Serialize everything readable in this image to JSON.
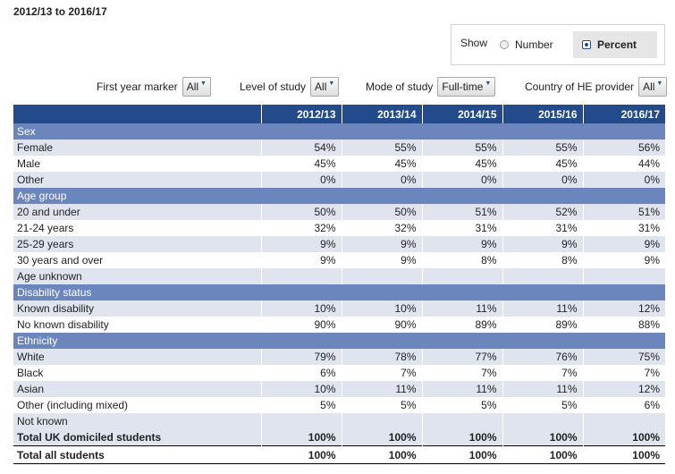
{
  "title": "2012/13 to 2016/17",
  "show": {
    "label": "Show",
    "number_label": "Number",
    "percent_label": "Percent"
  },
  "filters": [
    {
      "label": "First year marker",
      "value": "All"
    },
    {
      "label": "Level of study",
      "value": "All"
    },
    {
      "label": "Mode of study",
      "value": "Full-time"
    },
    {
      "label": "Country of HE provider",
      "value": "All"
    }
  ],
  "columns": [
    "2012/13",
    "2013/14",
    "2014/15",
    "2015/16",
    "2016/17"
  ],
  "rows": [
    {
      "type": "section",
      "label": "Sex"
    },
    {
      "type": "data",
      "label": "Female",
      "values": [
        "54%",
        "55%",
        "55%",
        "55%",
        "56%"
      ]
    },
    {
      "type": "data",
      "label": "Male",
      "values": [
        "45%",
        "45%",
        "45%",
        "45%",
        "44%"
      ]
    },
    {
      "type": "data",
      "label": "Other",
      "values": [
        "0%",
        "0%",
        "0%",
        "0%",
        "0%"
      ]
    },
    {
      "type": "section",
      "label": "Age group"
    },
    {
      "type": "data",
      "label": "20 and under",
      "values": [
        "50%",
        "50%",
        "51%",
        "52%",
        "51%"
      ]
    },
    {
      "type": "data",
      "label": "21-24 years",
      "values": [
        "32%",
        "32%",
        "31%",
        "31%",
        "31%"
      ]
    },
    {
      "type": "data",
      "label": "25-29 years",
      "values": [
        "9%",
        "9%",
        "9%",
        "9%",
        "9%"
      ]
    },
    {
      "type": "data",
      "label": "30 years and over",
      "values": [
        "9%",
        "9%",
        "8%",
        "8%",
        "9%"
      ]
    },
    {
      "type": "data",
      "label": "Age unknown",
      "values": [
        "",
        "",
        "",
        "",
        ""
      ]
    },
    {
      "type": "section",
      "label": "Disability status"
    },
    {
      "type": "data",
      "label": "Known disability",
      "values": [
        "10%",
        "10%",
        "11%",
        "11%",
        "12%"
      ]
    },
    {
      "type": "data",
      "label": "No known disability",
      "values": [
        "90%",
        "90%",
        "89%",
        "89%",
        "88%"
      ]
    },
    {
      "type": "section",
      "label": "Ethnicity"
    },
    {
      "type": "data",
      "label": "White",
      "values": [
        "79%",
        "78%",
        "77%",
        "76%",
        "75%"
      ]
    },
    {
      "type": "data",
      "label": "Black",
      "values": [
        "6%",
        "7%",
        "7%",
        "7%",
        "7%"
      ]
    },
    {
      "type": "data",
      "label": "Asian",
      "values": [
        "10%",
        "11%",
        "11%",
        "11%",
        "12%"
      ]
    },
    {
      "type": "data",
      "label": "Other (including mixed)",
      "values": [
        "5%",
        "5%",
        "5%",
        "5%",
        "6%"
      ]
    },
    {
      "type": "data",
      "label": "Not known",
      "values": [
        "",
        "",
        "",
        "",
        ""
      ]
    },
    {
      "type": "total",
      "label": "Total UK domiciled students",
      "values": [
        "100%",
        "100%",
        "100%",
        "100%",
        "100%"
      ]
    },
    {
      "type": "grand",
      "label": "Total all students",
      "values": [
        "100%",
        "100%",
        "100%",
        "100%",
        "100%"
      ]
    }
  ]
}
